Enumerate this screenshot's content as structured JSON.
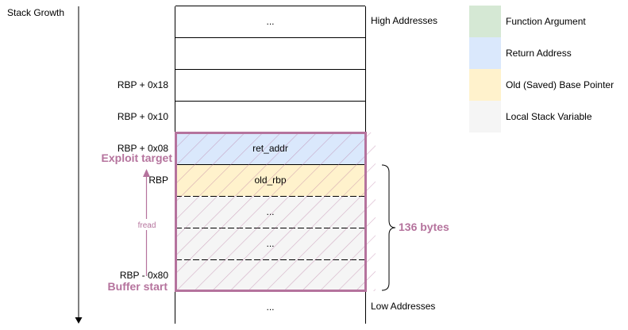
{
  "stack_growth_label": "Stack Growth",
  "address_labels": {
    "high": "High Addresses",
    "low": "Low Addresses"
  },
  "rows": [
    {
      "text": "...",
      "offset": "",
      "kind": "plain"
    },
    {
      "text": "",
      "offset": "",
      "kind": "plain"
    },
    {
      "text": "",
      "offset": "RBP + 0x18",
      "kind": "plain"
    },
    {
      "text": "",
      "offset": "RBP + 0x10",
      "kind": "plain"
    },
    {
      "text": "ret_addr",
      "offset": "RBP + 0x08",
      "kind": "return"
    },
    {
      "text": "old_rbp",
      "offset": "RBP",
      "kind": "basepointer"
    },
    {
      "text": "...",
      "offset": "",
      "kind": "local"
    },
    {
      "text": "...",
      "offset": "",
      "kind": "local"
    },
    {
      "text": "",
      "offset": "RBP - 0x80",
      "kind": "local"
    },
    {
      "text": "...",
      "offset": "",
      "kind": "plain"
    }
  ],
  "annotations": {
    "exploit_target": "Exploit target",
    "buffer_start": "Buffer start",
    "fread": "fread",
    "bytes": "136 bytes"
  },
  "legend": [
    {
      "label": "Function Argument",
      "color": "#D5E8D4"
    },
    {
      "label": "Return Address",
      "color": "#DAE8FC"
    },
    {
      "label": "Old (Saved) Base Pointer",
      "color": "#FFF2CC"
    },
    {
      "label": "Local Stack Variable",
      "color": "#F5F5F5"
    }
  ],
  "colors": {
    "accent": "#B5739D",
    "plain": "#FFFFFF",
    "return": "#DAE8FC",
    "basepointer": "#FFF2CC",
    "local": "#F5F5F5"
  }
}
